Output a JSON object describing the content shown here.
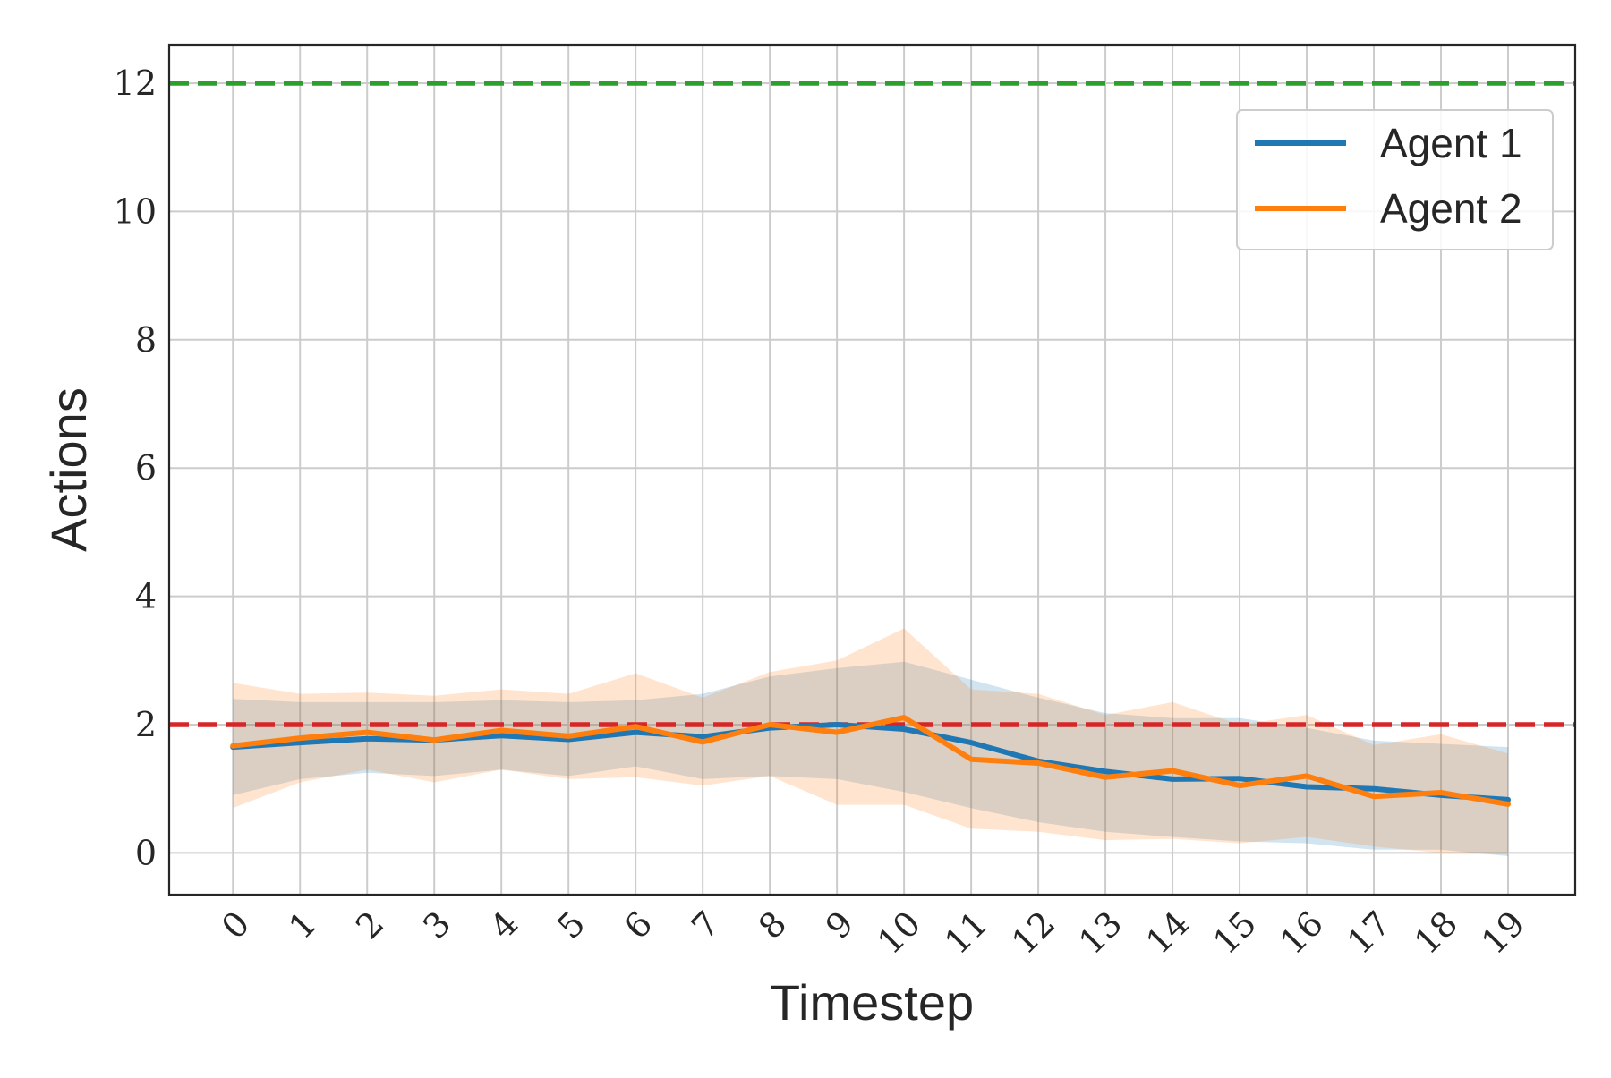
{
  "chart_data": {
    "type": "line",
    "title": "",
    "xlabel": "Timestep",
    "ylabel": "Actions",
    "x": [
      0,
      1,
      2,
      3,
      4,
      5,
      6,
      7,
      8,
      9,
      10,
      11,
      12,
      13,
      14,
      15,
      16,
      17,
      18,
      19
    ],
    "x_tick_labels": [
      "0",
      "1",
      "2",
      "3",
      "4",
      "5",
      "6",
      "7",
      "8",
      "9",
      "10",
      "11",
      "12",
      "13",
      "14",
      "15",
      "16",
      "17",
      "18",
      "19"
    ],
    "y_ticks": [
      0,
      2,
      4,
      6,
      8,
      10,
      12
    ],
    "y_tick_labels": [
      "0",
      "2",
      "4",
      "6",
      "8",
      "10",
      "12"
    ],
    "xlim": [
      -0.95,
      20.0
    ],
    "ylim": [
      -0.65,
      12.6
    ],
    "grid": true,
    "legend_position": "top-right",
    "series": [
      {
        "name": "Agent 1",
        "color": "#1f77b4",
        "values": [
          1.65,
          1.72,
          1.78,
          1.76,
          1.83,
          1.77,
          1.88,
          1.81,
          1.95,
          2.0,
          1.93,
          1.72,
          1.43,
          1.27,
          1.15,
          1.16,
          1.03,
          1.0,
          0.9,
          0.83
        ],
        "band_low": [
          0.9,
          1.15,
          1.25,
          1.2,
          1.3,
          1.2,
          1.35,
          1.15,
          1.2,
          1.15,
          0.95,
          0.7,
          0.48,
          0.33,
          0.25,
          0.18,
          0.15,
          0.05,
          0.05,
          -0.05
        ],
        "band_high": [
          2.4,
          2.35,
          2.35,
          2.35,
          2.38,
          2.35,
          2.38,
          2.48,
          2.75,
          2.88,
          2.98,
          2.7,
          2.42,
          2.18,
          2.1,
          2.1,
          1.95,
          1.75,
          1.7,
          1.65
        ]
      },
      {
        "name": "Agent 2",
        "color": "#ff7f0e",
        "values": [
          1.67,
          1.79,
          1.88,
          1.76,
          1.91,
          1.82,
          1.97,
          1.73,
          2.0,
          1.88,
          2.11,
          1.46,
          1.4,
          1.18,
          1.28,
          1.05,
          1.2,
          0.88,
          0.94,
          0.76
        ],
        "band_low": [
          0.7,
          1.1,
          1.3,
          1.1,
          1.3,
          1.15,
          1.18,
          1.05,
          1.2,
          0.75,
          0.75,
          0.38,
          0.33,
          0.2,
          0.22,
          0.15,
          0.25,
          0.1,
          0.0,
          -0.02
        ],
        "band_high": [
          2.65,
          2.48,
          2.5,
          2.45,
          2.55,
          2.48,
          2.8,
          2.42,
          2.82,
          3.0,
          3.5,
          2.55,
          2.48,
          2.15,
          2.35,
          2.0,
          2.15,
          1.68,
          1.85,
          1.55
        ]
      }
    ],
    "reference_lines": [
      {
        "y": 12,
        "color": "#2ca02c",
        "style": "dashed"
      },
      {
        "y": 2,
        "color": "#d62728",
        "style": "dashed"
      }
    ]
  }
}
